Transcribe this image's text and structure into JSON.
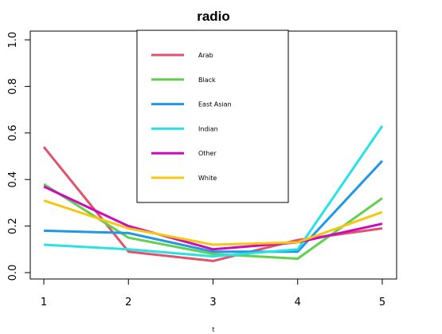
{
  "chart_data": {
    "type": "line",
    "title": "radio",
    "xlabel": "t",
    "ylabel": "",
    "x": [
      1,
      2,
      3,
      4,
      5
    ],
    "xlim": [
      1,
      5
    ],
    "ylim": [
      0.0,
      1.0
    ],
    "x_ticks": [
      "1",
      "2",
      "3",
      "4",
      "5"
    ],
    "y_ticks": [
      "0.0",
      "0.2",
      "0.4",
      "0.6",
      "0.8",
      "1.0"
    ],
    "grid": false,
    "legend_position": "top-center",
    "series": [
      {
        "name": "Arab",
        "color": "#df536b",
        "values": [
          0.54,
          0.09,
          0.05,
          0.14,
          0.19
        ]
      },
      {
        "name": "Black",
        "color": "#61d04f",
        "values": [
          0.38,
          0.15,
          0.08,
          0.06,
          0.32
        ]
      },
      {
        "name": "East Asian",
        "color": "#2297e6",
        "values": [
          0.18,
          0.17,
          0.09,
          0.09,
          0.48
        ]
      },
      {
        "name": "Indian",
        "color": "#28e2e5",
        "values": [
          0.12,
          0.1,
          0.07,
          0.1,
          0.63
        ]
      },
      {
        "name": "Other",
        "color": "#cd0bbc",
        "values": [
          0.37,
          0.2,
          0.1,
          0.13,
          0.21
        ]
      },
      {
        "name": "White",
        "color": "#f5c710",
        "values": [
          0.31,
          0.19,
          0.12,
          0.13,
          0.26
        ]
      }
    ]
  }
}
